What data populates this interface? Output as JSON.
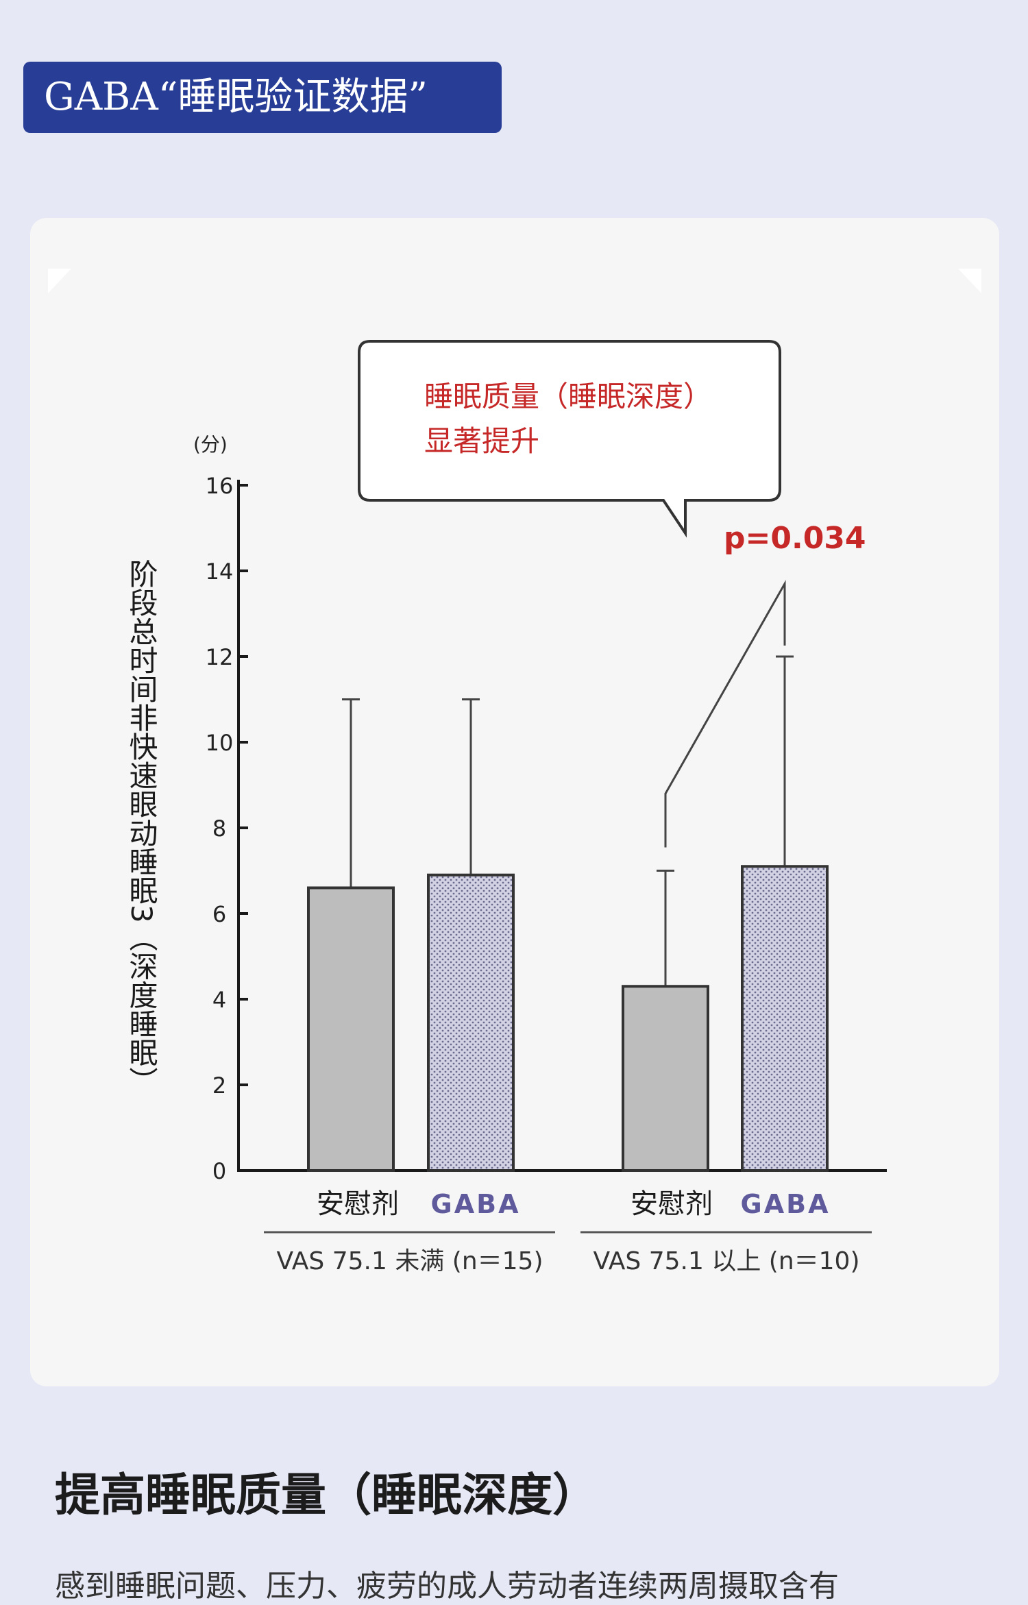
{
  "title_banner": "GABA“睡眠验证数据”",
  "callout": {
    "line1": "睡眠质量（睡眠深度）",
    "line2": "显著提升"
  },
  "p_value": "p=0.034",
  "colors": {
    "banner": "#283d96",
    "placebo_bar": "#bdbdbd",
    "gaba_bar": "#c9c9dc",
    "gaba_label": "#5e5a9c",
    "callout_text": "#c62828",
    "p_value": "#c62828"
  },
  "chart_data": {
    "type": "bar",
    "y_unit": "(分)",
    "ylabel": "阶段总时间非快速眼动睡眠3（深度睡眠）",
    "ylim": [
      0,
      16
    ],
    "yticks": [
      0,
      2,
      4,
      6,
      8,
      10,
      12,
      14,
      16
    ],
    "groups": [
      {
        "label": "VAS 75.1 未满 (n＝15)",
        "bars": [
          {
            "name": "安慰剂",
            "value": 6.6,
            "error_top": 11.0
          },
          {
            "name": "GABA",
            "value": 6.9,
            "error_top": 11.0
          }
        ]
      },
      {
        "label": "VAS 75.1 以上 (n＝10)",
        "bars": [
          {
            "name": "安慰剂",
            "value": 4.3,
            "error_top": 7.0
          },
          {
            "name": "GABA",
            "value": 7.1,
            "error_top": 12.0
          }
        ]
      }
    ],
    "significance": {
      "group": 1,
      "label": "p=0.034"
    }
  },
  "section_heading": "提高睡眠质量（睡眠深度）",
  "body_text": "感到睡眠问题、压力、疲劳的成人劳动者连续两周摄取含有"
}
